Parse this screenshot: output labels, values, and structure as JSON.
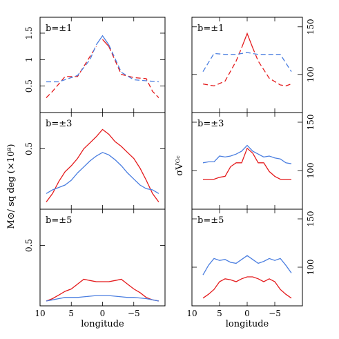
{
  "chart_data": [
    {
      "type": "line",
      "panel": "left-top",
      "label": "b=±1",
      "xlim": [
        10,
        -10
      ],
      "ylim": [
        0,
        1.8
      ],
      "yticks": [
        0.5,
        1,
        1.5
      ],
      "ytick_labels": [
        "0.5",
        "1",
        "1.5"
      ],
      "ytick_side": "left",
      "series": [
        {
          "color": "#e41a1c",
          "dash": "solid",
          "x": [
            0,
            -1
          ],
          "y": [
            1.38,
            1.25
          ]
        },
        {
          "color": "#4a7ee0",
          "dash": "solid",
          "x": [
            1,
            0,
            -1
          ],
          "y": [
            1.28,
            1.45,
            1.28
          ]
        },
        {
          "color": "#e41a1c",
          "dash": "dashed",
          "x": [
            9,
            8,
            6,
            4,
            1
          ],
          "y": [
            0.28,
            0.4,
            0.68,
            0.68,
            1.25
          ]
        },
        {
          "color": "#e41a1c",
          "dash": "dashed",
          "x": [
            -1,
            -3,
            -5,
            -7,
            -8,
            -9
          ],
          "y": [
            1.25,
            0.72,
            0.66,
            0.64,
            0.4,
            0.28
          ]
        },
        {
          "color": "#4a7ee0",
          "dash": "dashed",
          "x": [
            9,
            7,
            4,
            2,
            1
          ],
          "y": [
            0.58,
            0.58,
            0.7,
            1.0,
            1.28
          ]
        },
        {
          "color": "#4a7ee0",
          "dash": "dashed",
          "x": [
            -1,
            -3,
            -5,
            -7,
            -9
          ],
          "y": [
            1.28,
            0.76,
            0.62,
            0.6,
            0.58
          ]
        }
      ]
    },
    {
      "type": "line",
      "panel": "left-middle",
      "label": "b=±3",
      "xlim": [
        10,
        -10
      ],
      "ylim": [
        0,
        0.8
      ],
      "yticks": [
        0.5
      ],
      "ytick_labels": [
        "0.5"
      ],
      "ytick_side": "left",
      "series": [
        {
          "color": "#e41a1c",
          "dash": "solid",
          "x": [
            9,
            8,
            7,
            6,
            5,
            4,
            3,
            2,
            1,
            0,
            -1,
            -2,
            -3,
            -4,
            -5,
            -6,
            -7,
            -8,
            -9
          ],
          "y": [
            0.06,
            0.13,
            0.23,
            0.31,
            0.36,
            0.42,
            0.5,
            0.55,
            0.6,
            0.66,
            0.62,
            0.56,
            0.52,
            0.47,
            0.42,
            0.34,
            0.24,
            0.13,
            0.06
          ]
        },
        {
          "color": "#4a7ee0",
          "dash": "solid",
          "x": [
            9,
            8,
            7,
            6,
            5,
            4,
            3,
            2,
            1,
            0,
            -1,
            -2,
            -3,
            -4,
            -5,
            -6,
            -7,
            -8,
            -9
          ],
          "y": [
            0.13,
            0.16,
            0.18,
            0.2,
            0.24,
            0.3,
            0.35,
            0.4,
            0.44,
            0.47,
            0.45,
            0.41,
            0.36,
            0.3,
            0.25,
            0.2,
            0.17,
            0.16,
            0.13
          ]
        }
      ]
    },
    {
      "type": "line",
      "panel": "left-bottom",
      "label": "b=±5",
      "xlim": [
        10,
        -10
      ],
      "ylim": [
        0,
        0.8
      ],
      "yticks": [
        0.5
      ],
      "ytick_labels": [
        "0.5"
      ],
      "ytick_side": "left",
      "series": [
        {
          "color": "#e41a1c",
          "dash": "solid",
          "x": [
            9,
            8,
            7,
            6,
            5,
            4,
            3,
            2,
            1,
            0,
            -1,
            -2,
            -3,
            -4,
            -5,
            -6,
            -7,
            -8,
            -9
          ],
          "y": [
            0.04,
            0.06,
            0.09,
            0.12,
            0.14,
            0.18,
            0.22,
            0.21,
            0.2,
            0.2,
            0.2,
            0.21,
            0.22,
            0.18,
            0.14,
            0.11,
            0.07,
            0.05,
            0.04
          ]
        },
        {
          "color": "#4a7ee0",
          "dash": "solid",
          "x": [
            9,
            8,
            7,
            6,
            5,
            4,
            3,
            2,
            1,
            0,
            -1,
            -2,
            -3,
            -4,
            -5,
            -6,
            -7,
            -8,
            -9
          ],
          "y": [
            0.04,
            0.05,
            0.06,
            0.07,
            0.07,
            0.07,
            0.075,
            0.08,
            0.085,
            0.085,
            0.085,
            0.08,
            0.075,
            0.07,
            0.07,
            0.065,
            0.06,
            0.05,
            0.04
          ]
        }
      ]
    },
    {
      "type": "line",
      "panel": "right-top",
      "label": "b=±1",
      "xlim": [
        10,
        -10
      ],
      "ylim": [
        60,
        160
      ],
      "yticks": [
        100,
        150
      ],
      "ytick_labels": [
        "100",
        "150"
      ],
      "ytick_side": "right",
      "series": [
        {
          "color": "#e41a1c",
          "dash": "solid",
          "x": [
            1,
            0,
            -1
          ],
          "y": [
            128,
            143,
            128
          ]
        },
        {
          "color": "#e41a1c",
          "dash": "dashed",
          "x": [
            8,
            6,
            4,
            2,
            1
          ],
          "y": [
            90,
            88,
            93,
            114,
            128
          ]
        },
        {
          "color": "#e41a1c",
          "dash": "dashed",
          "x": [
            -1,
            -2,
            -4,
            -6,
            -7,
            -8
          ],
          "y": [
            128,
            114,
            96,
            89,
            88,
            90
          ]
        },
        {
          "color": "#4a7ee0",
          "dash": "dashed",
          "x": [
            8,
            6,
            4,
            2,
            0,
            -2,
            -4,
            -6,
            -8
          ],
          "y": [
            103,
            122,
            121,
            121,
            123,
            121,
            121,
            121,
            103
          ]
        }
      ]
    },
    {
      "type": "line",
      "panel": "right-middle",
      "label": "b=±3",
      "xlim": [
        10,
        -10
      ],
      "ylim": [
        60,
        160
      ],
      "yticks": [
        100,
        150
      ],
      "ytick_labels": [
        "100",
        "150"
      ],
      "ytick_side": "right",
      "series": [
        {
          "color": "#e41a1c",
          "dash": "solid",
          "x": [
            8,
            7,
            6,
            5,
            4,
            3,
            2,
            1,
            0,
            -1,
            -2,
            -3,
            -4,
            -5,
            -6,
            -7,
            -8
          ],
          "y": [
            91,
            91,
            91,
            93,
            94,
            104,
            108,
            108,
            123,
            118,
            108,
            108,
            99,
            94,
            91,
            91,
            91
          ]
        },
        {
          "color": "#4a7ee0",
          "dash": "solid",
          "x": [
            8,
            7,
            6,
            5,
            4,
            3,
            2,
            1,
            0,
            -1,
            -2,
            -3,
            -4,
            -5,
            -6,
            -7,
            -8
          ],
          "y": [
            108,
            109,
            109,
            115,
            114,
            115,
            117,
            120,
            126,
            120,
            117,
            114,
            115,
            113,
            112,
            108,
            107
          ]
        }
      ]
    },
    {
      "type": "line",
      "panel": "right-bottom",
      "label": "b=±5",
      "xlim": [
        10,
        -10
      ],
      "ylim": [
        60,
        160
      ],
      "yticks": [
        100,
        150
      ],
      "ytick_labels": [
        "100",
        "150"
      ],
      "ytick_side": "right",
      "series": [
        {
          "color": "#e41a1c",
          "dash": "solid",
          "x": [
            8,
            7,
            6,
            5,
            4,
            3,
            2,
            1,
            0,
            -1,
            -2,
            -3,
            -4,
            -5,
            -6,
            -7,
            -8
          ],
          "y": [
            68,
            72,
            77,
            85,
            88,
            87,
            85,
            88,
            90,
            90,
            88,
            85,
            88,
            85,
            77,
            72,
            68
          ]
        },
        {
          "color": "#4a7ee0",
          "dash": "solid",
          "x": [
            8,
            7,
            6,
            5,
            4,
            3,
            2,
            1,
            0,
            -1,
            -2,
            -3,
            -4,
            -5,
            -6,
            -7,
            -8
          ],
          "y": [
            92,
            102,
            109,
            107,
            108,
            105,
            104,
            108,
            112,
            108,
            104,
            106,
            109,
            107,
            109,
            102,
            94
          ]
        }
      ]
    }
  ],
  "xaxis": {
    "label": "longitude",
    "ticks": [
      10,
      5,
      0,
      -5
    ],
    "tick_labels": [
      "10",
      "5",
      "0",
      "−5"
    ]
  },
  "left_ylabel": "M⊙/ sq deg (×10⁸)",
  "right_ylabel": "σVᴳᶜ"
}
